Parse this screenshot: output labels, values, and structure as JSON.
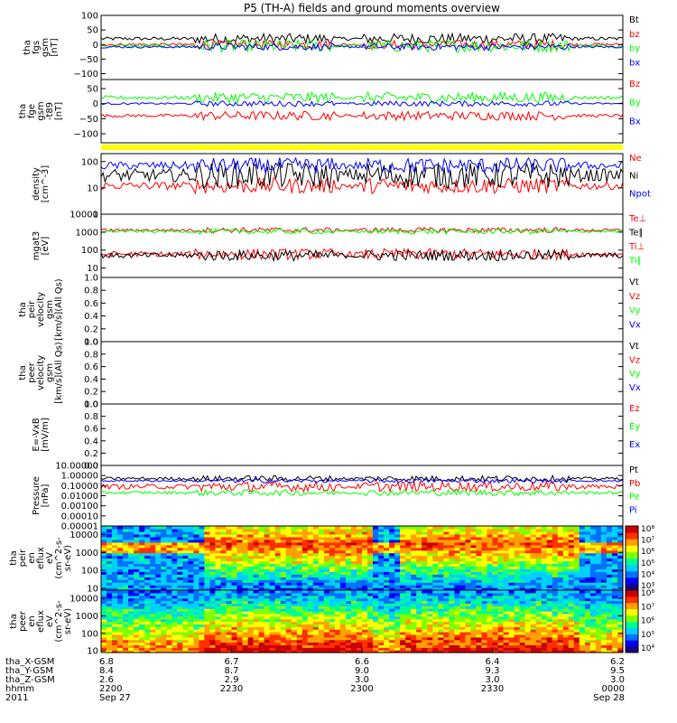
{
  "title": "P5 (TH-A) fields and ground moments overview",
  "colors": {
    "black": "#000000",
    "red": "#ff0000",
    "green": "#00ff00",
    "blue": "#0000ff",
    "yellow": "#ffff00"
  },
  "chart_data": [
    {
      "type": "line",
      "panel": "fgs",
      "ylabel_lines": [
        "tha",
        "fgs",
        "gsm",
        "[nT]"
      ],
      "ylim": [
        -120,
        100
      ],
      "yticks": [
        "100",
        "50",
        "0",
        "−50",
        "−100"
      ],
      "ytick_values": [
        100,
        50,
        0,
        -50,
        -100
      ],
      "series": [
        {
          "name": "Bt",
          "color": "black",
          "level": 20,
          "spread": 12
        },
        {
          "name": "bz",
          "color": "red",
          "level": 0,
          "spread": 10
        },
        {
          "name": "by",
          "color": "green",
          "level": -5,
          "spread": 14
        },
        {
          "name": "bx",
          "color": "blue",
          "level": -8,
          "spread": 8
        }
      ]
    },
    {
      "type": "line",
      "panel": "fge",
      "ylabel_lines": [
        "tha",
        "fge",
        "gsm",
        "-t89",
        "[nT]"
      ],
      "ylim": [
        -130,
        80
      ],
      "yticks": [
        "50",
        "0",
        "−50",
        "−100"
      ],
      "ytick_values": [
        50,
        0,
        -50,
        -100
      ],
      "series": [
        {
          "name": "Bz",
          "color": "red",
          "level": -40,
          "spread": 10
        },
        {
          "name": "By",
          "color": "green",
          "level": 20,
          "spread": 12
        },
        {
          "name": "Bx",
          "color": "blue",
          "level": 0,
          "spread": 6
        }
      ]
    },
    {
      "type": "line",
      "panel": "density",
      "ylabel_lines": [
        "density",
        "[cm^-3]"
      ],
      "yscale": "log",
      "ylim": [
        1,
        200
      ],
      "yticks": [
        "100",
        "10",
        "1"
      ],
      "ytick_values": [
        100,
        10,
        1
      ],
      "series": [
        {
          "name": "Ne",
          "color": "red",
          "level": 12,
          "spread": 0.3
        },
        {
          "name": "Ni",
          "color": "black",
          "level": 30,
          "spread": 0.5
        },
        {
          "name": "Npot",
          "color": "blue",
          "level": 70,
          "spread": 0.3
        }
      ]
    },
    {
      "type": "line",
      "panel": "temperature",
      "ylabel_lines": [
        "mgat3",
        "[eV]"
      ],
      "yscale": "log",
      "ylim": [
        3,
        10000
      ],
      "yticks": [
        "10000",
        "1000",
        "100",
        "10"
      ],
      "ytick_values": [
        10000,
        1000,
        100,
        10
      ],
      "series": [
        {
          "name": "Te⊥",
          "color": "red",
          "level": 60,
          "spread": 0.3
        },
        {
          "name": "Te∥",
          "color": "black",
          "level": 50,
          "spread": 0.3
        },
        {
          "name": "Ti⊥",
          "color": "red",
          "level": 1300,
          "spread": 0.15
        },
        {
          "name": "Ti∥",
          "color": "green",
          "level": 1100,
          "spread": 0.15
        }
      ]
    },
    {
      "type": "line",
      "panel": "peir-velocity",
      "ylabel_lines": [
        "tha",
        "peir",
        "velocity",
        "gsm",
        "[km/s](All Qs)"
      ],
      "ylim": [
        0,
        1
      ],
      "yticks": [
        "1.0",
        "0.8",
        "0.6",
        "0.4",
        "0.2",
        "0.0"
      ],
      "ytick_values": [
        1,
        0.8,
        0.6,
        0.4,
        0.2,
        0
      ],
      "series": [
        {
          "name": "Vt",
          "color": "black"
        },
        {
          "name": "Vz",
          "color": "red"
        },
        {
          "name": "Vy",
          "color": "green"
        },
        {
          "name": "Vx",
          "color": "blue"
        }
      ]
    },
    {
      "type": "line",
      "panel": "peer-velocity",
      "ylabel_lines": [
        "tha",
        "peer",
        "velocity",
        "gsm",
        "[km/s](All Qs)"
      ],
      "ylim": [
        0,
        1
      ],
      "yticks": [
        "1.0",
        "0.8",
        "0.6",
        "0.4",
        "0.2",
        "0.0"
      ],
      "ytick_values": [
        1,
        0.8,
        0.6,
        0.4,
        0.2,
        0
      ],
      "series": [
        {
          "name": "Vt",
          "color": "black"
        },
        {
          "name": "Vz",
          "color": "red"
        },
        {
          "name": "Vy",
          "color": "green"
        },
        {
          "name": "Vx",
          "color": "blue"
        }
      ]
    },
    {
      "type": "line",
      "panel": "efield",
      "ylabel_lines": [
        "E=-VxB",
        "[mV/m]"
      ],
      "ylim": [
        0,
        1
      ],
      "yticks": [
        "1.0",
        "0.8",
        "0.6",
        "0.4",
        "0.2",
        "0.0"
      ],
      "ytick_values": [
        1,
        0.8,
        0.6,
        0.4,
        0.2,
        0
      ],
      "series": [
        {
          "name": "Ez",
          "color": "red"
        },
        {
          "name": "Ey",
          "color": "green"
        },
        {
          "name": "Ex",
          "color": "blue"
        }
      ]
    },
    {
      "type": "line",
      "panel": "pressure",
      "ylabel_lines": [
        "Pressure",
        "[nPa]"
      ],
      "yscale": "log",
      "ylim": [
        1e-05,
        10
      ],
      "yticks": [
        "10.00000",
        "1.00000",
        "0.10000",
        "0.01000",
        "0.00100",
        "0.00010",
        "0.00001"
      ],
      "ytick_values": [
        10,
        1,
        0.1,
        0.01,
        0.001,
        0.0001,
        1e-05
      ],
      "series": [
        {
          "name": "Pt",
          "color": "black",
          "level": 0.5,
          "spread": 0.3
        },
        {
          "name": "Pb",
          "color": "red",
          "level": 0.08,
          "spread": 0.5
        },
        {
          "name": "Pe",
          "color": "green",
          "level": 0.02,
          "spread": 0.3
        },
        {
          "name": "Pi",
          "color": "blue",
          "level": 0.3,
          "spread": 0.2
        }
      ]
    },
    {
      "type": "heatmap",
      "panel": "peir-eflux",
      "ylabel_lines": [
        "tha",
        "peir",
        "en",
        "eflux",
        "eV",
        "(cm^2-s-",
        "sr-eV)"
      ],
      "yscale": "log",
      "ylim": [
        8,
        30000
      ],
      "yticks": [
        "10000",
        "1000",
        "100",
        "10"
      ],
      "ytick_values": [
        10000,
        1000,
        100,
        10
      ],
      "colorbar_ticks": [
        "10⁸",
        "10⁷",
        "10⁶",
        "10⁵",
        "10⁴",
        "10³"
      ],
      "colorbar_range": [
        3,
        8
      ]
    },
    {
      "type": "heatmap",
      "panel": "peer-eflux",
      "ylabel_lines": [
        "tha",
        "peer",
        "en",
        "eflux",
        "eV",
        "(cm^2-s-",
        "sr-eV)"
      ],
      "yscale": "log",
      "ylim": [
        8,
        30000
      ],
      "yticks": [
        "10000",
        "1000",
        "100",
        "10"
      ],
      "ytick_values": [
        10000,
        1000,
        100,
        10
      ],
      "colorbar_ticks": [
        "10⁸",
        "10⁷",
        "10⁶",
        "10⁵",
        "10⁴"
      ],
      "colorbar_range": [
        3.6,
        8
      ]
    }
  ],
  "x_axis": {
    "row_labels": [
      "tha_X-GSM",
      "tha_Y-GSM",
      "tha_Z-GSM",
      "hhmm",
      "2011"
    ],
    "columns": [
      {
        "x": "6.8",
        "y": "8.4",
        "z": "2.6",
        "time": "2200",
        "date": "Sep 27"
      },
      {
        "x": "6.7",
        "y": "8.7",
        "z": "2.9",
        "time": "2230",
        "date": ""
      },
      {
        "x": "6.6",
        "y": "9.0",
        "z": "3.0",
        "time": "2300",
        "date": ""
      },
      {
        "x": "6.4",
        "y": "9.3",
        "z": "3.0",
        "time": "2330",
        "date": ""
      },
      {
        "x": "6.2",
        "y": "9.5",
        "z": "3.0",
        "time": "0000",
        "date": "Sep 28"
      }
    ]
  }
}
